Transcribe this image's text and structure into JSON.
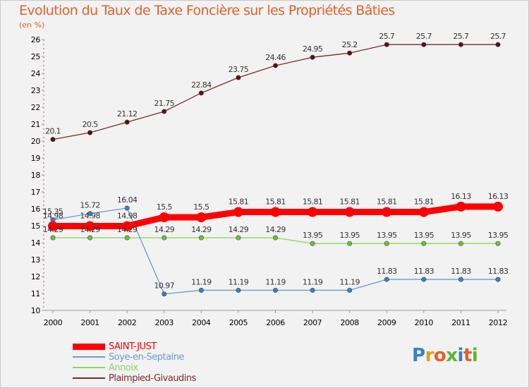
{
  "title": "Evolution du Taux de Taxe Foncière sur les Propriétés Bâties",
  "unit": "(en %)",
  "logo": {
    "text": "Proxiti",
    "letter_colors": [
      "#3a7fc8",
      "#e2a017",
      "#e0622a",
      "#5bb530",
      "#3a7fc8",
      "#e0622a",
      "#5bb530"
    ]
  },
  "chart_data": {
    "type": "line",
    "title": "Evolution du Taux de Taxe Foncière sur les Propriétés Bâties",
    "xlabel": "",
    "ylabel": "(en %)",
    "ylim": [
      10,
      26
    ],
    "yticks": [
      "10",
      "11",
      "12",
      "13",
      "14",
      "15",
      "16",
      "17",
      "18",
      "19",
      "20",
      "21",
      "22",
      "23",
      "24",
      "25",
      "26"
    ],
    "categories": [
      "2000",
      "2001",
      "2002",
      "2003",
      "2004",
      "2005",
      "2006",
      "2007",
      "2008",
      "2009",
      "2010",
      "2011",
      "2012"
    ],
    "series": [
      {
        "name": "Plaimpied-Givaudins",
        "color": "#7a2a2a",
        "point_color": "#5a1010",
        "style": "thin",
        "values": [
          20.1,
          20.5,
          21.12,
          21.75,
          22.84,
          23.75,
          24.46,
          24.95,
          25.2,
          25.7,
          25.7,
          25.7,
          25.7
        ],
        "labels": [
          "20.1",
          "20.5",
          "21.12",
          "21.75",
          "22.84",
          "23.75",
          "24.46",
          "24.95",
          "25.2",
          "25.7",
          "25.7",
          "25.7",
          "25.7"
        ]
      },
      {
        "name": "Annoix",
        "color": "#8fd460",
        "point_color": "#6cc23a",
        "style": "thin",
        "values": [
          14.29,
          14.29,
          14.29,
          14.29,
          14.29,
          14.29,
          14.29,
          13.95,
          13.95,
          13.95,
          13.95,
          13.95,
          13.95
        ],
        "labels": [
          "14.29",
          "14.29",
          "14.29",
          "14.29",
          "14.29",
          "14.29",
          "14.29",
          "13.95",
          "13.95",
          "13.95",
          "13.95",
          "13.95",
          "13.95"
        ]
      },
      {
        "name": "Soye-en-Septaine",
        "color": "#6a9ccc",
        "point_color": "#3a7fc8",
        "style": "thin",
        "values": [
          15.35,
          15.72,
          16.04,
          10.97,
          11.19,
          11.19,
          11.19,
          11.19,
          11.19,
          11.83,
          11.83,
          11.83,
          11.83
        ],
        "labels": [
          "15.35",
          "15.72",
          "16.04",
          "10.97",
          "11.19",
          "11.19",
          "11.19",
          "11.19",
          "11.19",
          "11.83",
          "11.83",
          "11.83",
          "11.83"
        ]
      },
      {
        "name": "SAINT-JUST",
        "color": "#ff0000",
        "point_color": "#ff0000",
        "style": "thick",
        "values": [
          14.98,
          14.98,
          14.98,
          15.5,
          15.5,
          15.81,
          15.81,
          15.81,
          15.81,
          15.81,
          15.81,
          16.13,
          16.13
        ],
        "labels": [
          "14.98",
          "14.98",
          "14.98",
          "15.5",
          "15.5",
          "15.81",
          "15.81",
          "15.81",
          "15.81",
          "15.81",
          "15.81",
          "16.13",
          "16.13"
        ]
      }
    ],
    "legend": [
      {
        "name": "SAINT-JUST",
        "color": "#ff0000",
        "style": "thick"
      },
      {
        "name": "Soye-en-Septaine",
        "color": "#6a9ccc",
        "style": "thin"
      },
      {
        "name": "Annoix",
        "color": "#8fd460",
        "style": "thin"
      },
      {
        "name": "Plaimpied-Givaudins",
        "color": "#7a2a2a",
        "style": "thin"
      }
    ],
    "legend_position": "bottom-left",
    "grid": false
  }
}
